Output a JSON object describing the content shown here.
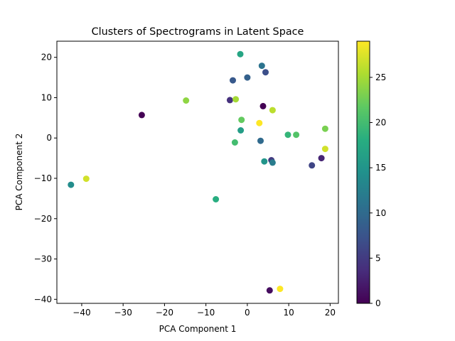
{
  "chart_data": {
    "type": "scatter",
    "title": "Clusters of Spectrograms in Latent Space",
    "xlabel": "PCA Component 1",
    "ylabel": "PCA Component 2",
    "xlim": [
      -46,
      22
    ],
    "ylim": [
      -41,
      24
    ],
    "xticks": [
      -40,
      -30,
      -20,
      -10,
      0,
      10,
      20
    ],
    "yticks": [
      -40,
      -30,
      -20,
      -10,
      0,
      10,
      20
    ],
    "colorbar": {
      "range": [
        0,
        29
      ],
      "ticks": [
        0,
        5,
        10,
        15,
        20,
        25
      ],
      "colormap": "viridis"
    },
    "grid": false,
    "points": [
      {
        "x": -25.5,
        "y": 5.7,
        "c": 0
      },
      {
        "x": 3.8,
        "y": 7.9,
        "c": 0
      },
      {
        "x": 5.4,
        "y": -37.8,
        "c": 1
      },
      {
        "x": 17.9,
        "y": -5.0,
        "c": 3
      },
      {
        "x": -4.2,
        "y": 9.4,
        "c": 4
      },
      {
        "x": 5.8,
        "y": -5.5,
        "c": 5
      },
      {
        "x": 15.6,
        "y": -6.8,
        "c": 6
      },
      {
        "x": 4.4,
        "y": 16.3,
        "c": 7
      },
      {
        "x": -3.5,
        "y": 14.3,
        "c": 8
      },
      {
        "x": 0.0,
        "y": 15.0,
        "c": 9
      },
      {
        "x": 3.2,
        "y": -0.7,
        "c": 10
      },
      {
        "x": 3.5,
        "y": 17.9,
        "c": 11
      },
      {
        "x": 6.1,
        "y": -6.1,
        "c": 12
      },
      {
        "x": -42.6,
        "y": -11.6,
        "c": 14
      },
      {
        "x": 4.1,
        "y": -5.8,
        "c": 15
      },
      {
        "x": -1.6,
        "y": 1.9,
        "c": 16
      },
      {
        "x": -1.7,
        "y": 20.8,
        "c": 17
      },
      {
        "x": -7.6,
        "y": -15.2,
        "c": 18
      },
      {
        "x": 9.8,
        "y": 0.8,
        "c": 19
      },
      {
        "x": -3.0,
        "y": -1.1,
        "c": 20
      },
      {
        "x": 11.8,
        "y": 0.8,
        "c": 21
      },
      {
        "x": -1.4,
        "y": 4.5,
        "c": 22
      },
      {
        "x": 18.8,
        "y": 2.3,
        "c": 23
      },
      {
        "x": -14.8,
        "y": 9.3,
        "c": 24
      },
      {
        "x": -2.8,
        "y": 9.6,
        "c": 25
      },
      {
        "x": 6.1,
        "y": 6.9,
        "c": 26
      },
      {
        "x": -38.9,
        "y": -10.1,
        "c": 27
      },
      {
        "x": 18.8,
        "y": -2.7,
        "c": 27
      },
      {
        "x": 2.9,
        "y": 3.7,
        "c": 29
      },
      {
        "x": 7.9,
        "y": -37.4,
        "c": 29
      }
    ]
  }
}
